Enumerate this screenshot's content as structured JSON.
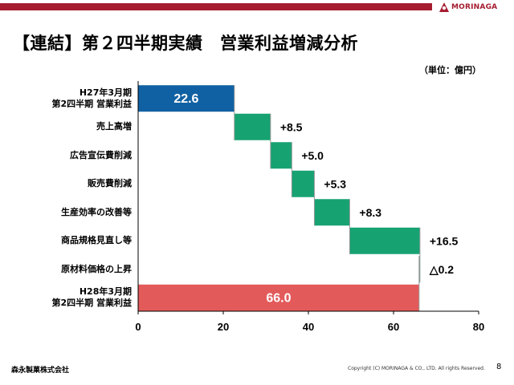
{
  "header": {
    "brand": "MORINAGA"
  },
  "title": "【連結】第２四半期実績　営業利益増減分析",
  "unit": "（単位：億円）",
  "footer": {
    "company": "森永製菓株式会社",
    "copyright": "Copyright (C) MORINAGA & CO., LTD. All rights Reserved.",
    "page": "8"
  },
  "colors": {
    "start": "#1061a3",
    "increase": "#17a272",
    "end": "#e35a5a",
    "topbar": "#a51c30"
  },
  "chart_data": {
    "type": "bar",
    "subtype": "waterfall",
    "orientation": "horizontal",
    "categories": [
      "H27年3月期\n第2四半期 営業利益",
      "売上高増",
      "広告宣伝費削減",
      "販売費削減",
      "生産効率の改善等",
      "商品規格見直し等",
      "原材料価格の上昇",
      "H28年3月期\n第2四半期 営業利益"
    ],
    "values": [
      22.6,
      8.5,
      5.0,
      5.3,
      8.3,
      16.5,
      -0.2,
      66.0
    ],
    "data_labels": [
      "22.6",
      "+8.5",
      "+5.0",
      "+5.3",
      "+8.3",
      "+16.5",
      "△0.2",
      "66.0"
    ],
    "kinds": [
      "total",
      "delta",
      "delta",
      "delta",
      "delta",
      "delta",
      "delta",
      "total"
    ],
    "xlim": [
      0,
      80
    ],
    "xticks": [
      "0",
      "20",
      "40",
      "60",
      "80"
    ],
    "grid": false,
    "legend": false
  }
}
